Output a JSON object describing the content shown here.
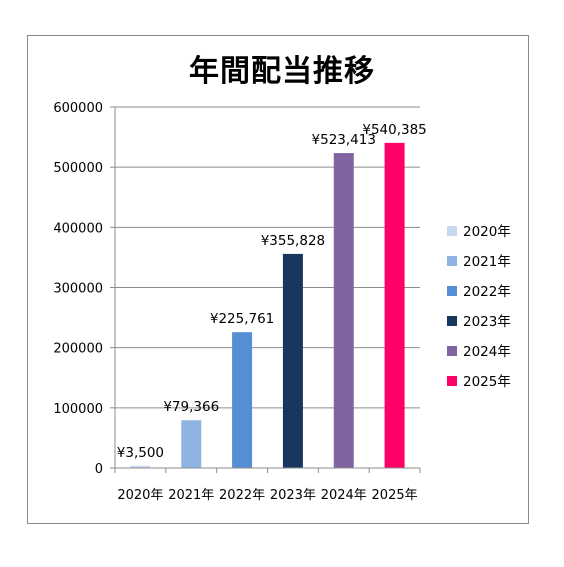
{
  "chart_data": {
    "type": "bar",
    "title": "年間配当推移",
    "xlabel": "",
    "ylabel": "",
    "categories": [
      "2020年",
      "2021年",
      "2022年",
      "2023年",
      "2024年",
      "2025年"
    ],
    "values": [
      3500,
      79366,
      225761,
      355828,
      523413,
      540385
    ],
    "data_labels": [
      "¥3,500",
      "¥79,366",
      "¥225,761",
      "¥355,828",
      "¥523,413",
      "¥540,385"
    ],
    "colors": [
      "#c6d9f1",
      "#8db4e2",
      "#558ed5",
      "#17375e",
      "#8064a2",
      "#ff0066"
    ],
    "ylim": [
      0,
      600000
    ],
    "yticks": [
      0,
      100000,
      200000,
      300000,
      400000,
      500000,
      600000
    ],
    "ytick_labels": [
      "0",
      "100000",
      "200000",
      "300000",
      "400000",
      "500000",
      "600000"
    ],
    "grid": true,
    "legend": {
      "position": "right",
      "entries": [
        "2020年",
        "2021年",
        "2022年",
        "2023年",
        "2024年",
        "2025年"
      ]
    }
  }
}
